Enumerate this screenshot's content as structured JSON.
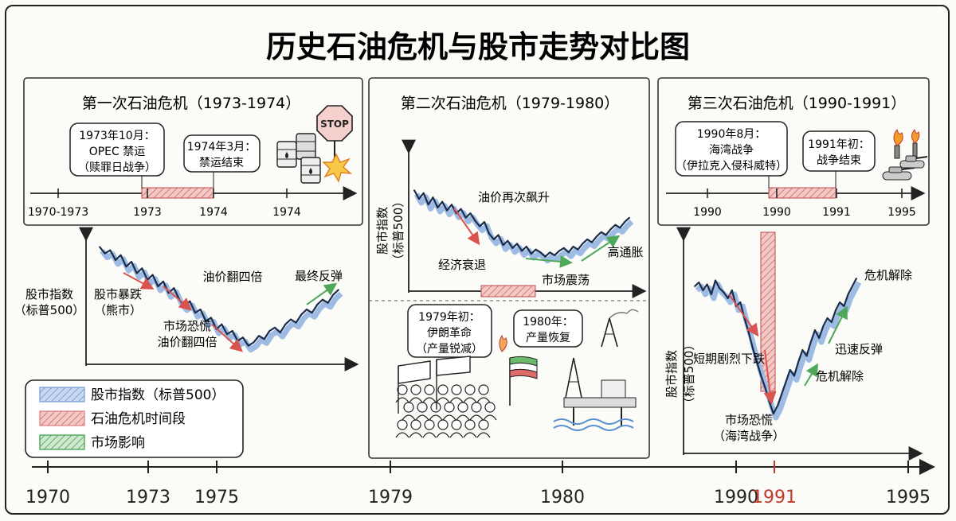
{
  "title": "历史石油危机与股市走势对比图",
  "colors": {
    "index_line": "#1b2b4a",
    "index_fill": "#7fa3d6",
    "crisis": "#e08a8a",
    "crisis_stroke": "#b84c4c",
    "impact": "#4fa85a",
    "drop_arrow": "#d9544f",
    "highlight_year": "#c0392b"
  },
  "icons": [
    "oil-barrel-icon",
    "stop-sign-icon",
    "explosion-icon",
    "protest-crowd-icon",
    "iran-flag-icon",
    "fire-icon",
    "oil-rig-icon",
    "oil-derrick-icon",
    "tank-icon",
    "oil-fire-icon"
  ],
  "legend": {
    "items": [
      {
        "label": "股市指数（标普500）",
        "color": "#7fa3d6"
      },
      {
        "label": "石油危机时间段",
        "color": "#e08a8a"
      },
      {
        "label": "市场影响",
        "color": "#4fa85a"
      }
    ]
  },
  "chart_data": [
    {
      "type": "line",
      "title": "第一次石油危机（1973-1974）",
      "timeline": {
        "ticks": [
          "1970-1973",
          "1973",
          "1974",
          "1974"
        ],
        "crisis_span": [
          "1973",
          "1974"
        ],
        "events": [
          {
            "text": [
              "1973年10月：",
              "OPEC 禁运",
              "（赎罪日战争）"
            ]
          },
          {
            "text": [
              "1974年3月：",
              "禁运结束"
            ]
          }
        ]
      },
      "ylabel": [
        "股市指数",
        "（标普500）"
      ],
      "y": [
        100,
        96,
        98,
        92,
        95,
        88,
        91,
        84,
        87,
        80,
        83,
        76,
        79,
        72,
        75,
        68,
        64,
        67,
        60,
        62,
        55,
        57,
        50,
        53,
        47,
        49,
        43,
        45,
        40,
        42,
        46,
        44,
        49,
        51,
        48,
        53,
        56,
        54,
        59,
        62,
        60,
        65,
        68,
        66,
        71,
        74
      ],
      "ylim": [
        35,
        105
      ],
      "annotations": [
        {
          "text": [
            "股市暴跌",
            "（熊市）"
          ]
        },
        {
          "text": [
            "油价翻四倍"
          ]
        },
        {
          "text": [
            "市场恐慌",
            "油价翻四倍"
          ]
        },
        {
          "text": [
            "最终反弹"
          ]
        }
      ]
    },
    {
      "type": "line",
      "title": "第二次石油危机（1979-1980）",
      "ylabel": [
        "股市指数",
        "（标普500）"
      ],
      "y": [
        90,
        84,
        88,
        80,
        85,
        78,
        82,
        76,
        80,
        74,
        77,
        71,
        74,
        69,
        65,
        68,
        60,
        56,
        59,
        52,
        55,
        50,
        53,
        48,
        51,
        46,
        49,
        47,
        44,
        47,
        45,
        48,
        50,
        47,
        51,
        49,
        53,
        56,
        54,
        58,
        61,
        59,
        63,
        66,
        64,
        68,
        71
      ],
      "ylim": [
        40,
        95
      ],
      "annotations": [
        {
          "text": [
            "油价再次飙升"
          ]
        },
        {
          "text": [
            "经济衰退"
          ]
        },
        {
          "text": [
            "高通胀"
          ]
        },
        {
          "text": [
            "市场震荡"
          ]
        }
      ],
      "events": [
        {
          "text": [
            "1979年初：",
            "伊朗革命",
            "（产量锐减）"
          ]
        },
        {
          "text": [
            "1980年：",
            "产量恢复"
          ]
        }
      ]
    },
    {
      "type": "line",
      "title": "第三次石油危机（1990-1991）",
      "timeline": {
        "ticks": [
          "1990",
          "1990",
          "1991",
          "1995"
        ],
        "crisis_span": [
          "1990",
          "1991"
        ],
        "events": [
          {
            "text": [
              "1990年8月：",
              "海湾战争",
              "（伊拉克入侵科威特）"
            ]
          },
          {
            "text": [
              "1991年初：",
              "战争结束"
            ]
          }
        ]
      },
      "ylabel": [
        "股市指数",
        "（标普500）"
      ],
      "y": [
        78,
        80,
        76,
        79,
        74,
        81,
        77,
        75,
        72,
        76,
        68,
        70,
        62,
        55,
        47,
        40,
        33,
        27,
        20,
        14,
        18,
        24,
        30,
        36,
        33,
        40,
        46,
        43,
        50,
        56,
        52,
        58,
        62,
        60,
        66,
        70,
        68,
        74,
        78,
        82
      ],
      "ylim": [
        10,
        90
      ],
      "annotations": [
        {
          "text": [
            "短期剧烈下跌"
          ]
        },
        {
          "text": [
            "市场恐慌",
            "（海湾战争）"
          ]
        },
        {
          "text": [
            "迅速反弹"
          ]
        },
        {
          "text": [
            "危机解除"
          ]
        },
        {
          "text": [
            "危机解除"
          ]
        }
      ]
    }
  ],
  "bottom_axis": {
    "ticks": [
      {
        "label": "1970",
        "highlight": false
      },
      {
        "label": "1973",
        "highlight": false
      },
      {
        "label": "1975",
        "highlight": false
      },
      {
        "label": "1979",
        "highlight": false
      },
      {
        "label": "1980",
        "highlight": false
      },
      {
        "label": "1990",
        "highlight": false
      },
      {
        "label": "1991",
        "highlight": true
      },
      {
        "label": "1995",
        "highlight": false
      }
    ]
  }
}
